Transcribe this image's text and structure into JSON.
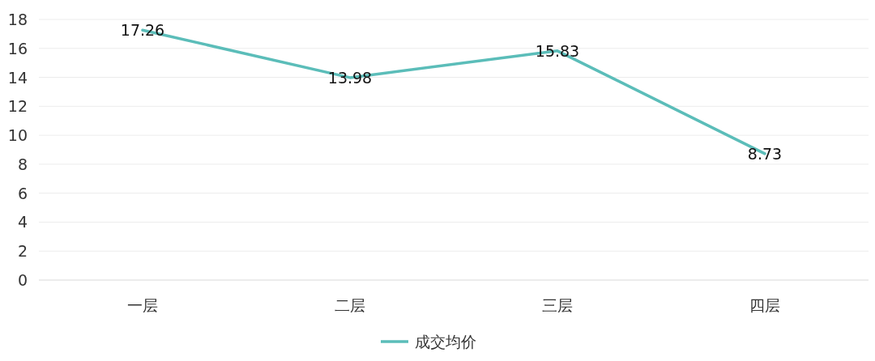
{
  "chart_data": {
    "type": "line",
    "categories": [
      "一层",
      "二层",
      "三层",
      "四层"
    ],
    "series": [
      {
        "name": "成交均价",
        "color": "#5bbdb9",
        "values": [
          17.26,
          13.98,
          15.83,
          8.73
        ]
      }
    ],
    "ylim": [
      0,
      18
    ],
    "yticks": [
      0,
      2,
      4,
      6,
      8,
      10,
      12,
      14,
      16,
      18
    ],
    "grid": "y",
    "legend": "bottom",
    "data_labels": true
  }
}
